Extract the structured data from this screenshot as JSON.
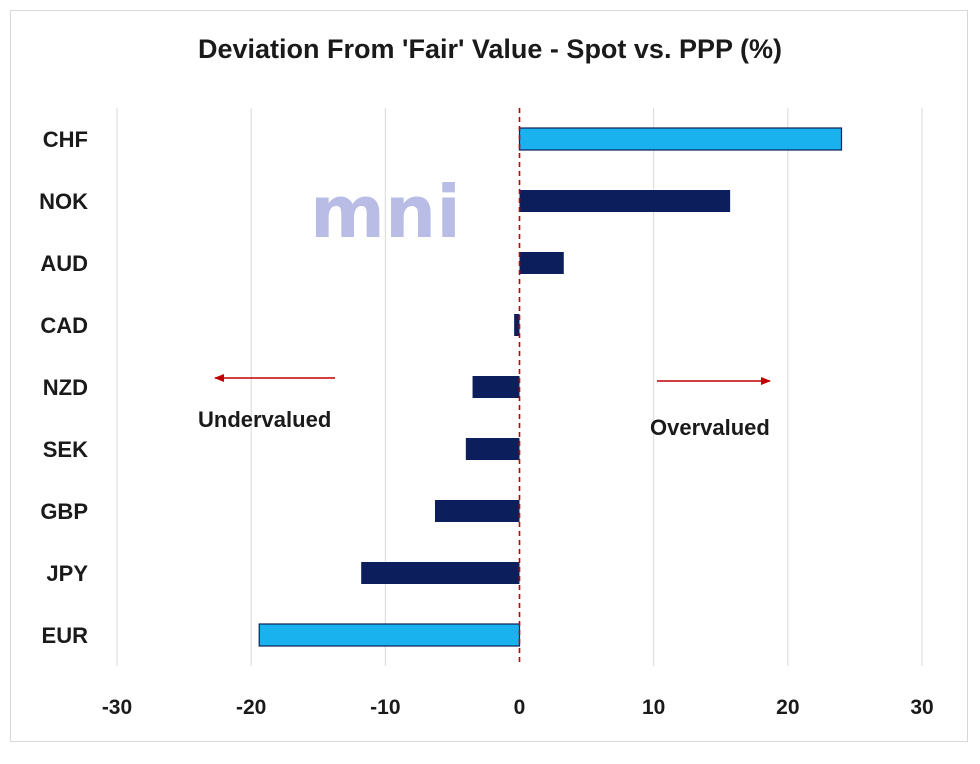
{
  "chart_data": {
    "type": "bar",
    "orientation": "horizontal",
    "title": "Deviation From 'Fair' Value - Spot vs. PPP (%)",
    "xlabel": "",
    "ylabel": "",
    "categories": [
      "CHF",
      "NOK",
      "AUD",
      "CAD",
      "NZD",
      "SEK",
      "GBP",
      "JPY",
      "EUR"
    ],
    "values": [
      24,
      15.7,
      3.3,
      -0.4,
      -3.5,
      -4.0,
      -6.3,
      -11.8,
      -19.4
    ],
    "xlim": [
      -30,
      30
    ],
    "xticks": [
      -30,
      -20,
      -10,
      0,
      10,
      20,
      30
    ],
    "grid": "vertical",
    "zero_line": "dashed-red",
    "highlighted": [
      "CHF",
      "EUR"
    ],
    "annotations": {
      "left": "Undervalued",
      "right": "Overvalued"
    },
    "watermark": "mni"
  },
  "colors": {
    "bar_default": "#0c1f5c",
    "bar_highlight": "#1ab2ee",
    "gridline": "#d9d9d9",
    "zero_line": "#c00000",
    "arrow": "#c00000",
    "watermark": "#b9bde6"
  }
}
